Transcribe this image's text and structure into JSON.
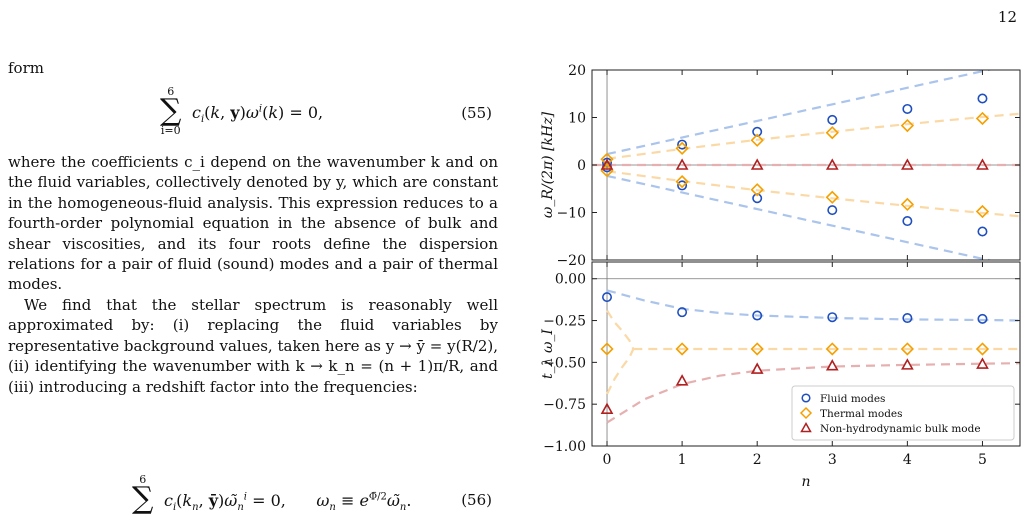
{
  "page_number": "12",
  "text": {
    "intro_word": "form",
    "eq55_number": "(55)",
    "eq56_number": "(56)",
    "para1": "where the coefficients c_i depend on the wavenumber k and on the fluid variables, collectively denoted by y, which are constant in the homogeneous-fluid analysis. This expression reduces to a fourth-order polynomial equation in the absence of bulk and shear viscosities, and its four roots define the dispersion relations for a pair of fluid (sound) modes and a pair of thermal modes.",
    "para2": "We find that the stellar spectrum is reasonably well approximated by: (i) replacing the fluid variables by representative background values, taken here as y → ȳ = y(R/2), (ii) identifying the wavenumber with k → k_n = (n + 1)π/R, and (iii) introducing a redshift factor into the frequencies:"
  },
  "chart_data": [
    {
      "type": "scatter",
      "ylabel": "ω_R/(2π) [kHz]",
      "ylim": [
        -20,
        20
      ],
      "xlim": [
        -0.2,
        5.5
      ],
      "yticks": [
        -20,
        -10,
        0,
        10,
        20
      ],
      "ytick_labels": [
        "−20",
        "−10",
        "0",
        "10",
        "20"
      ],
      "series": [
        {
          "name": "Fluid modes",
          "color": "#1f4fbf",
          "marker": "circle",
          "x": [
            0,
            1,
            2,
            3,
            4,
            5,
            0,
            1,
            2,
            3,
            4,
            5
          ],
          "y": [
            0.5,
            4.3,
            7.0,
            9.5,
            11.8,
            14.0,
            -0.5,
            -4.3,
            -7.0,
            -9.5,
            -11.8,
            -14.0
          ]
        },
        {
          "name": "Thermal modes",
          "color": "#f5a000",
          "marker": "diamond",
          "x": [
            0,
            1,
            2,
            3,
            4,
            5,
            0,
            1,
            2,
            3,
            4,
            5
          ],
          "y": [
            1.2,
            3.5,
            5.2,
            6.8,
            8.3,
            9.8,
            -1.2,
            -3.5,
            -5.2,
            -6.8,
            -8.3,
            -9.8
          ]
        },
        {
          "name": "Non-hydrodynamic bulk mode",
          "color": "#b02020",
          "marker": "triangle",
          "x": [
            0,
            1,
            2,
            3,
            4,
            5
          ],
          "y": [
            0,
            0,
            0,
            0,
            0,
            0
          ]
        }
      ],
      "curves": [
        {
          "color": "#aac4ec",
          "x": [
            0,
            5.5
          ],
          "y": [
            2.3,
            21.5
          ]
        },
        {
          "color": "#aac4ec",
          "x": [
            0,
            5.5
          ],
          "y": [
            -2.3,
            -21.5
          ]
        },
        {
          "color": "#fbd9a6",
          "x": [
            0,
            1,
            2,
            3,
            4,
            5,
            5.5
          ],
          "y": [
            1.3,
            3.4,
            5.3,
            7.0,
            8.6,
            10.1,
            10.8
          ]
        },
        {
          "color": "#fbd9a6",
          "x": [
            0,
            1,
            2,
            3,
            4,
            5,
            5.5
          ],
          "y": [
            -1.3,
            -3.4,
            -5.3,
            -7.0,
            -8.6,
            -10.1,
            -10.8
          ]
        },
        {
          "color": "#e6b0b0",
          "x": [
            -0.2,
            5.5
          ],
          "y": [
            0,
            0
          ]
        }
      ]
    },
    {
      "type": "scatter",
      "xlabel": "n",
      "ylabel": "t_λ ω_I",
      "ylim": [
        -1.0,
        0.1
      ],
      "xlim": [
        -0.2,
        5.5
      ],
      "xticks": [
        0,
        1,
        2,
        3,
        4,
        5
      ],
      "xtick_labels": [
        "0",
        "1",
        "2",
        "3",
        "4",
        "5"
      ],
      "yticks": [
        -1.0,
        -0.75,
        -0.5,
        -0.25,
        0.0
      ],
      "ytick_labels": [
        "−1.00",
        "−0.75",
        "−0.50",
        "−0.25",
        "0.00"
      ],
      "legend": "bottom-right",
      "series": [
        {
          "name": "Fluid modes",
          "color": "#1f4fbf",
          "marker": "circle",
          "x": [
            0,
            1,
            2,
            3,
            4,
            5
          ],
          "y": [
            -0.11,
            -0.2,
            -0.22,
            -0.23,
            -0.235,
            -0.24
          ]
        },
        {
          "name": "Thermal modes",
          "color": "#f5a000",
          "marker": "diamond",
          "x": [
            0,
            1,
            2,
            3,
            4,
            5
          ],
          "y": [
            -0.42,
            -0.42,
            -0.42,
            -0.42,
            -0.42,
            -0.42
          ]
        },
        {
          "name": "Non-hydrodynamic bulk mode",
          "color": "#b02020",
          "marker": "triangle",
          "x": [
            0,
            1,
            2,
            3,
            4,
            5
          ],
          "y": [
            -0.78,
            -0.61,
            -0.54,
            -0.52,
            -0.515,
            -0.51
          ]
        }
      ],
      "curves": [
        {
          "color": "#aac4ec",
          "x": [
            0,
            0.5,
            1,
            1.5,
            2,
            3,
            4,
            5,
            5.5
          ],
          "y": [
            -0.07,
            -0.13,
            -0.18,
            -0.205,
            -0.22,
            -0.235,
            -0.243,
            -0.247,
            -0.25
          ]
        },
        {
          "color": "#fbd9a6",
          "x": [
            0.35,
            5.5
          ],
          "y": [
            -0.42,
            -0.42
          ]
        },
        {
          "color": "#fbd9a6",
          "x": [
            0,
            0.1,
            0.2,
            0.3,
            0.35
          ],
          "y": [
            -0.19,
            -0.26,
            -0.31,
            -0.37,
            -0.42
          ]
        },
        {
          "color": "#fbd9a6",
          "x": [
            0,
            0.1,
            0.2,
            0.3,
            0.35
          ],
          "y": [
            -0.69,
            -0.6,
            -0.53,
            -0.47,
            -0.42
          ]
        },
        {
          "color": "#e6b0b0",
          "x": [
            0,
            0.5,
            1,
            1.5,
            2,
            3,
            4,
            5,
            5.5
          ],
          "y": [
            -0.86,
            -0.72,
            -0.63,
            -0.58,
            -0.55,
            -0.525,
            -0.515,
            -0.508,
            -0.505
          ]
        }
      ]
    }
  ]
}
